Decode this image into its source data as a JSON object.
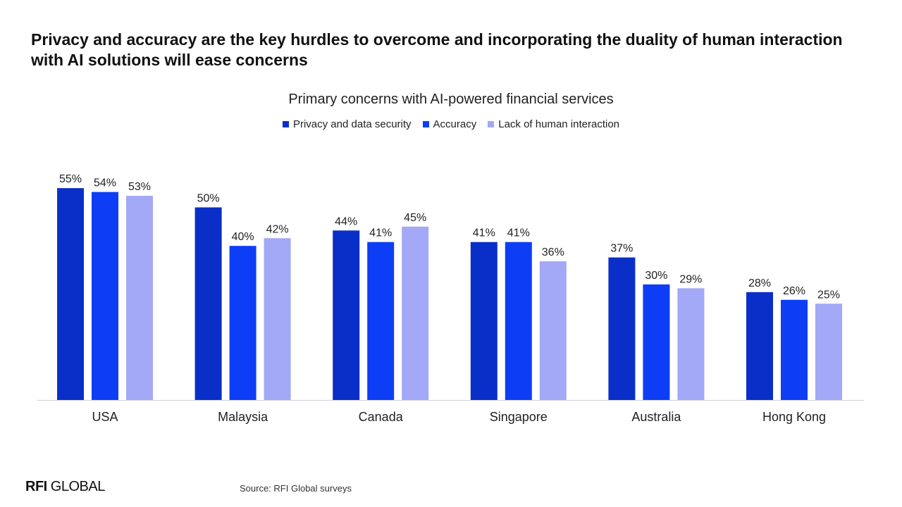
{
  "headline": "Privacy and accuracy are the key hurdles to overcome and incorporating the duality of human interaction with AI solutions will ease concerns",
  "footer": {
    "logo_bold": "RFI",
    "logo_rest": "GLOBAL",
    "source": "Source: RFI Global surveys"
  },
  "chart_data": {
    "type": "bar",
    "title": "Primary concerns with AI-powered financial services",
    "legend_position": "top-center",
    "grid": false,
    "ylim": [
      0,
      60
    ],
    "categories": [
      "USA",
      "Malaysia",
      "Canada",
      "Singapore",
      "Australia",
      "Hong Kong"
    ],
    "series": [
      {
        "name": "Privacy and data security",
        "color": "#0a2fc8",
        "values": [
          55,
          50,
          44,
          41,
          37,
          28
        ],
        "labels": [
          "55%",
          "50%",
          "44%",
          "41%",
          "37%",
          "28%"
        ]
      },
      {
        "name": "Accuracy",
        "color": "#0d3ef5",
        "values": [
          54,
          40,
          41,
          41,
          30,
          26
        ],
        "labels": [
          "54%",
          "40%",
          "41%",
          "41%",
          "30%",
          "26%"
        ]
      },
      {
        "name": "Lack of human interaction",
        "color": "#a3a8f7",
        "values": [
          53,
          42,
          45,
          36,
          29,
          25
        ],
        "labels": [
          "53%",
          "42%",
          "45%",
          "36%",
          "29%",
          "25%"
        ]
      }
    ]
  }
}
